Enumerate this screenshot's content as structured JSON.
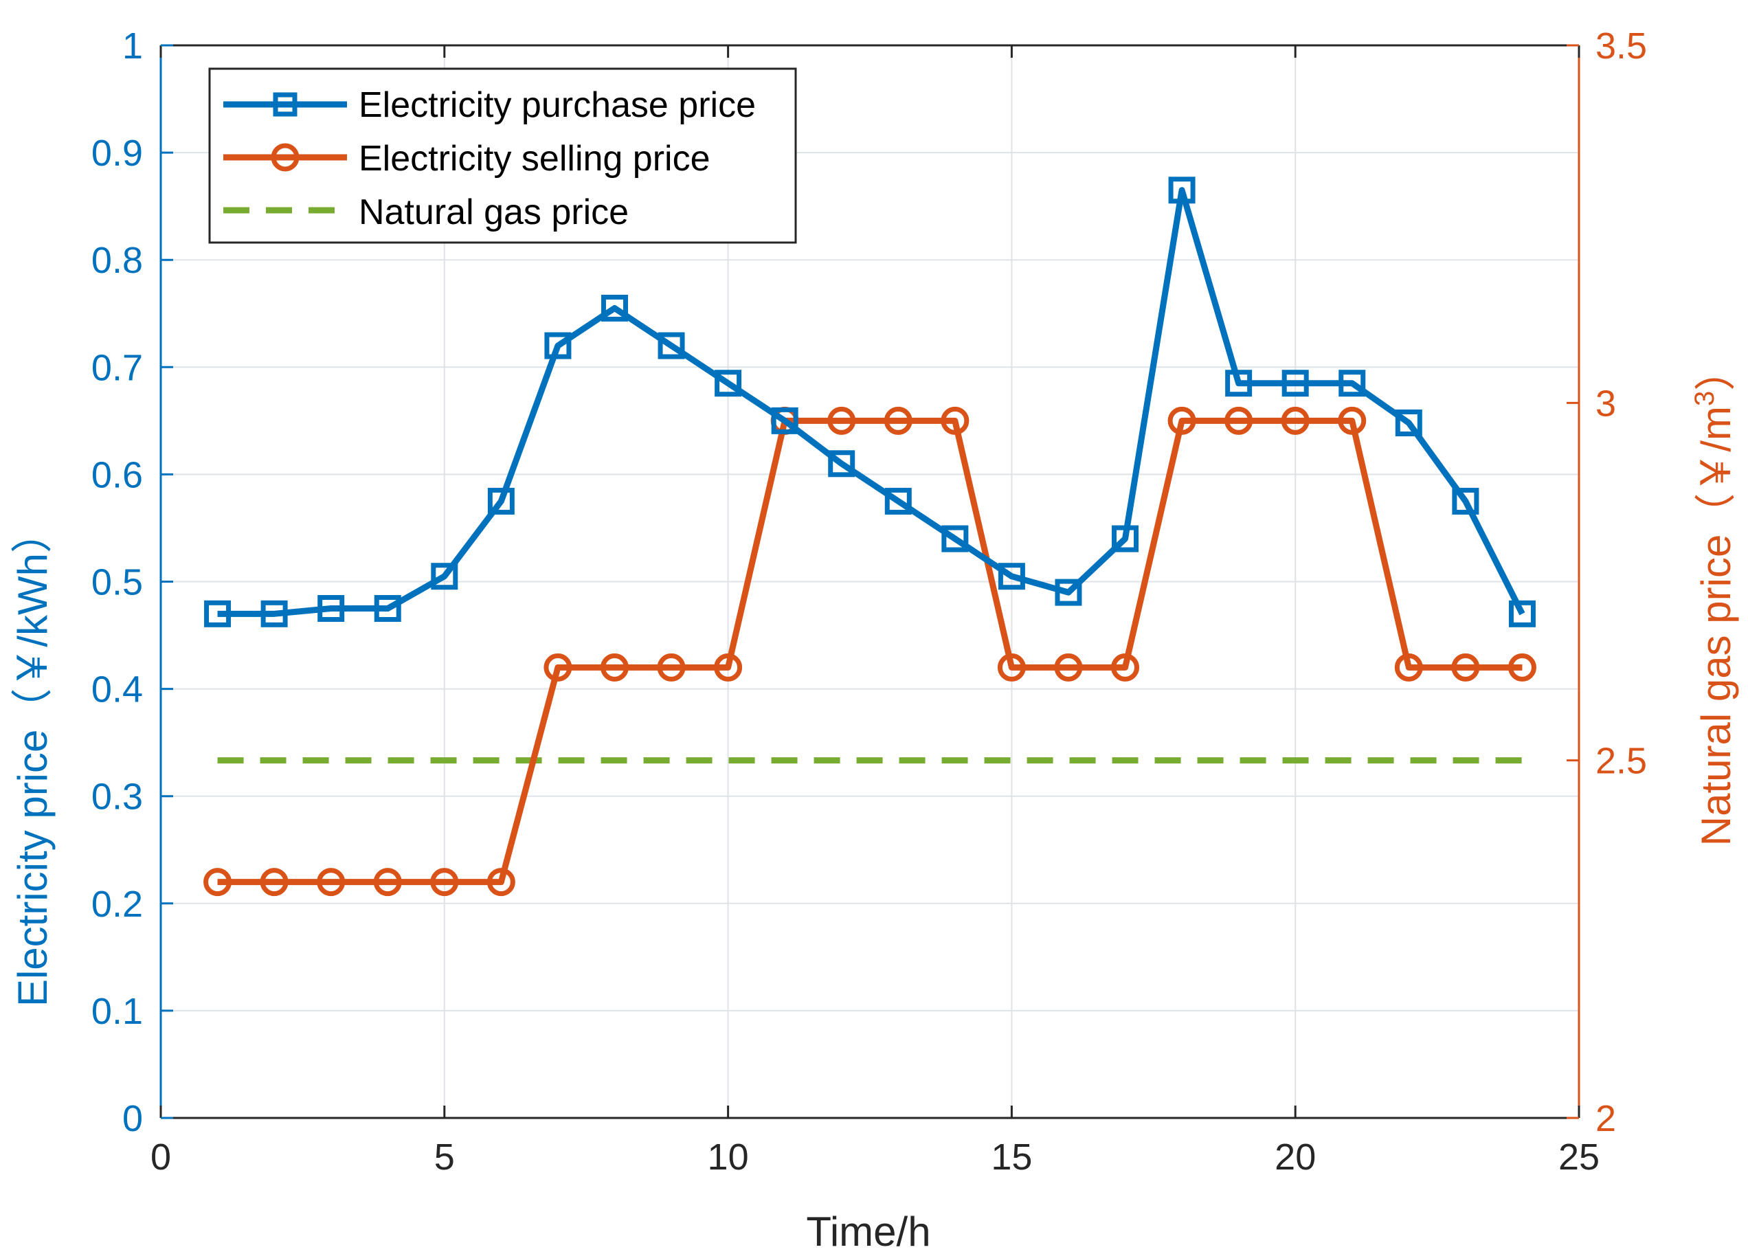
{
  "chart_data": {
    "type": "line",
    "title": "",
    "xlabel": "Time/h",
    "ylabel_left": "Electricity price（￥/kWh）",
    "ylabel_right_base": "Natural gas price（￥/m",
    "ylabel_right_sup": "3",
    "ylabel_right_close": "）",
    "xlim": [
      0,
      25
    ],
    "ylim_left": [
      0,
      1
    ],
    "ylim_right": [
      2,
      3.5
    ],
    "x_ticks": [
      0,
      5,
      10,
      15,
      20,
      25
    ],
    "x_tick_labels": [
      "0",
      "5",
      "10",
      "15",
      "20",
      "25"
    ],
    "left_ticks": [
      0,
      0.1,
      0.2,
      0.3,
      0.4,
      0.5,
      0.6,
      0.7,
      0.8,
      0.9,
      1
    ],
    "left_tick_labels": [
      "0",
      "0.1",
      "0.2",
      "0.3",
      "0.4",
      "0.5",
      "0.6",
      "0.7",
      "0.8",
      "0.9",
      "1"
    ],
    "right_ticks": [
      2,
      2.5,
      3,
      3.5
    ],
    "right_tick_labels": [
      "2",
      "2.5",
      "3",
      "3.5"
    ],
    "grid": true,
    "legend_position": "top-left",
    "x": [
      1,
      2,
      3,
      4,
      5,
      6,
      7,
      8,
      9,
      10,
      11,
      12,
      13,
      14,
      15,
      16,
      17,
      18,
      19,
      20,
      21,
      22,
      23,
      24
    ],
    "series": [
      {
        "name": "Electricity purchase price",
        "axis": "left",
        "marker": "square",
        "style": "solid",
        "color": "#0072BD",
        "values": [
          0.47,
          0.47,
          0.475,
          0.475,
          0.505,
          0.575,
          0.72,
          0.755,
          0.72,
          0.685,
          0.65,
          0.61,
          0.575,
          0.54,
          0.505,
          0.49,
          0.54,
          0.865,
          0.685,
          0.685,
          0.685,
          0.648,
          0.575,
          0.47
        ]
      },
      {
        "name": "Electricity selling price",
        "axis": "left",
        "marker": "circle",
        "style": "solid",
        "color": "#D95319",
        "values": [
          0.22,
          0.22,
          0.22,
          0.22,
          0.22,
          0.22,
          0.42,
          0.42,
          0.42,
          0.42,
          0.65,
          0.65,
          0.65,
          0.65,
          0.42,
          0.42,
          0.42,
          0.65,
          0.65,
          0.65,
          0.65,
          0.42,
          0.42,
          0.42
        ]
      },
      {
        "name": "Natural gas price",
        "axis": "right",
        "marker": "none",
        "style": "dashed",
        "color": "#77AC30",
        "values": [
          2.5,
          2.5,
          2.5,
          2.5,
          2.5,
          2.5,
          2.5,
          2.5,
          2.5,
          2.5,
          2.5,
          2.5,
          2.5,
          2.5,
          2.5,
          2.5,
          2.5,
          2.5,
          2.5,
          2.5,
          2.5,
          2.5,
          2.5,
          2.5
        ]
      }
    ]
  }
}
